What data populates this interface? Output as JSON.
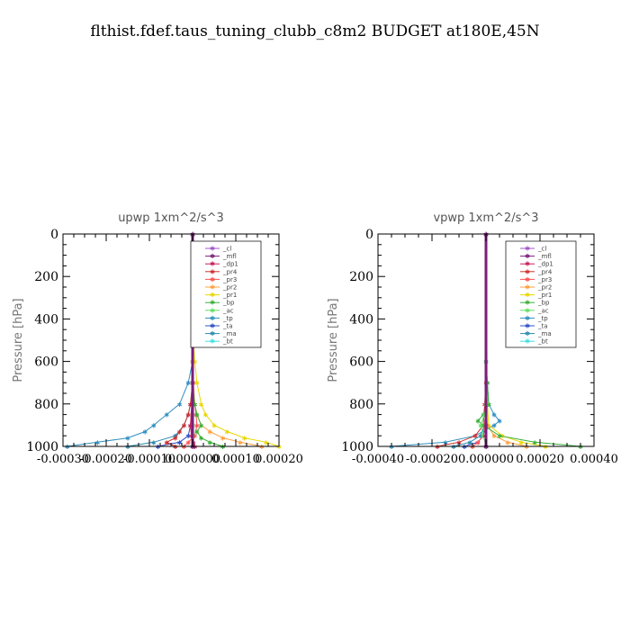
{
  "title": "flthist.fdef.taus_tuning_clubb_c8m2  BUDGET at180E,45N",
  "legend_entries": [
    "_cl",
    "_mfl",
    "_dp1",
    "_pr4",
    "_pr3",
    "_pr2",
    "_pr1",
    "_bp",
    "_ac",
    "_tp",
    "_ta",
    "_ma",
    "_bt"
  ],
  "series_colors": {
    "_cl": "#a259c9",
    "_mfl": "#7a1f7a",
    "_dp1": "#c81e5a",
    "_pr4": "#d03030",
    "_pr3": "#ff5050",
    "_pr2": "#ffa040",
    "_pr1": "#e8d800",
    "_bp": "#38b038",
    "_ac": "#60e060",
    "_tp": "#3090c0",
    "_ta": "#3050c8",
    "_ma": "#2a8ab0",
    "_bt": "#40e0e0"
  },
  "chart_data": [
    {
      "type": "line",
      "title": "upwp   1xm^2/s^3",
      "ylabel": "Pressure [hPa]",
      "ylim": [
        1000,
        0
      ],
      "xlim": [
        -0.0003,
        0.0002
      ],
      "xticks": [
        "-0.00030",
        "-0.00020",
        "-0.00010",
        "0.000000",
        "0.00010",
        "0.00020"
      ],
      "xtick_values": [
        -0.0003,
        -0.0002,
        -0.0001,
        0,
        0.0001,
        0.0002
      ],
      "yticks": [
        "0",
        "200",
        "400",
        "600",
        "800",
        "1000"
      ],
      "ytick_values": [
        0,
        200,
        400,
        600,
        800,
        1000
      ],
      "legend_position": "top-right",
      "series": [
        {
          "name": "_tp",
          "y": [
            0,
            500,
            600,
            700,
            800,
            850,
            900,
            930,
            960,
            980,
            1000
          ],
          "x": [
            0,
            0,
            0,
            -1e-05,
            -3e-05,
            -6e-05,
            -9e-05,
            -0.00011,
            -0.00015,
            -0.00022,
            -0.00029
          ]
        },
        {
          "name": "_ma",
          "y": [
            0,
            600,
            700,
            800,
            850,
            900,
            950,
            980,
            1000
          ],
          "x": [
            0,
            0,
            0,
            -5e-06,
            -1e-05,
            -2e-05,
            -4e-05,
            -9e-05,
            -0.00015
          ]
        },
        {
          "name": "_ta",
          "y": [
            0,
            800,
            900,
            950,
            980,
            1000
          ],
          "x": [
            0,
            0,
            -5e-06,
            -1e-05,
            -3e-05,
            -8e-05
          ]
        },
        {
          "name": "_pr4",
          "y": [
            0,
            600,
            700,
            800,
            850,
            900,
            930,
            960,
            980,
            1000
          ],
          "x": [
            0,
            0,
            0,
            -5e-06,
            -1e-05,
            -2e-05,
            -3e-05,
            -4e-05,
            -6e-05,
            -4e-05
          ]
        },
        {
          "name": "_pr3",
          "y": [
            0,
            700,
            800,
            850,
            900,
            950,
            980,
            1000
          ],
          "x": [
            0,
            0,
            5e-06,
            8e-06,
            1e-05,
            5e-06,
            -1e-05,
            -2e-05
          ]
        },
        {
          "name": "_pr1",
          "y": [
            0,
            500,
            600,
            700,
            800,
            850,
            900,
            930,
            960,
            980,
            1000
          ],
          "x": [
            0,
            2e-06,
            5e-06,
            1e-05,
            2e-05,
            3e-05,
            5e-05,
            8e-05,
            0.00012,
            0.00017,
            0.0002
          ]
        },
        {
          "name": "_pr2",
          "y": [
            0,
            600,
            700,
            800,
            850,
            900,
            930,
            960,
            980,
            1000
          ],
          "x": [
            0,
            0,
            2e-06,
            5e-06,
            1e-05,
            2e-05,
            4e-05,
            7e-05,
            0.00011,
            0.00016
          ]
        },
        {
          "name": "_bp",
          "y": [
            0,
            700,
            800,
            850,
            900,
            930,
            960,
            980,
            1000
          ],
          "x": [
            0,
            0,
            5e-06,
            1e-05,
            2e-05,
            1e-05,
            2e-05,
            4e-05,
            7e-05
          ]
        },
        {
          "name": "_ac",
          "y": [
            0,
            900,
            950,
            1000
          ],
          "x": [
            0,
            0,
            0,
            5e-06
          ]
        },
        {
          "name": "_bt",
          "y": [
            0,
            1000
          ],
          "x": [
            0,
            0
          ]
        },
        {
          "name": "_dp1",
          "y": [
            0,
            700,
            800,
            900,
            950,
            980,
            1000
          ],
          "x": [
            0,
            0,
            -2e-06,
            -5e-06,
            -3e-06,
            2e-06,
            5e-06
          ]
        },
        {
          "name": "_cl",
          "y": [
            0,
            1000
          ],
          "x": [
            0,
            0
          ]
        },
        {
          "name": "_mfl",
          "y": [
            0,
            1000
          ],
          "x": [
            0,
            0
          ]
        }
      ]
    },
    {
      "type": "line",
      "title": "vpwp   1xm^2/s^3",
      "ylabel": "Pressure [hPa]",
      "ylim": [
        1000,
        0
      ],
      "xlim": [
        -0.0004,
        0.0004
      ],
      "xticks": [
        "-0.00040",
        "-0.00020",
        "0.000000",
        "0.00020",
        "0.00040"
      ],
      "xtick_values": [
        -0.0004,
        -0.0002,
        0,
        0.0002,
        0.0004
      ],
      "yticks": [
        "0",
        "200",
        "400",
        "600",
        "800",
        "1000"
      ],
      "ytick_values": [
        0,
        200,
        400,
        600,
        800,
        1000
      ],
      "legend_position": "top-right",
      "series": [
        {
          "name": "_tp",
          "y": [
            0,
            600,
            700,
            800,
            850,
            880,
            900,
            950,
            980,
            1000
          ],
          "x": [
            0,
            0,
            5e-06,
            1e-05,
            3e-05,
            5e-05,
            3e-05,
            -4e-05,
            -0.00015,
            -0.00035
          ]
        },
        {
          "name": "_ma",
          "y": [
            0,
            800,
            900,
            950,
            980,
            1000
          ],
          "x": [
            0,
            0,
            -5e-06,
            -2e-05,
            -6e-05,
            -0.00012
          ]
        },
        {
          "name": "_ta",
          "y": [
            0,
            900,
            950,
            980,
            1000
          ],
          "x": [
            0,
            0,
            -1e-05,
            -3e-05,
            -8e-05
          ]
        },
        {
          "name": "_pr4",
          "y": [
            0,
            700,
            800,
            900,
            950,
            980,
            1000
          ],
          "x": [
            0,
            0,
            -5e-06,
            -1e-05,
            -4e-05,
            -0.0001,
            -0.00018
          ]
        },
        {
          "name": "_pr3",
          "y": [
            0,
            800,
            900,
            950,
            980,
            1000
          ],
          "x": [
            0,
            0,
            -5e-06,
            -1e-05,
            -3e-05,
            -5e-05
          ]
        },
        {
          "name": "_pr1",
          "y": [
            0,
            800,
            900,
            950,
            980,
            1000
          ],
          "x": [
            0,
            5e-06,
            1e-05,
            6e-05,
            0.00013,
            0.00022
          ]
        },
        {
          "name": "_pr2",
          "y": [
            0,
            800,
            900,
            950,
            980,
            1000
          ],
          "x": [
            0,
            0,
            5e-06,
            3e-05,
            8e-05,
            0.00015
          ]
        },
        {
          "name": "_bp",
          "y": [
            0,
            600,
            700,
            800,
            850,
            880,
            900,
            950,
            980,
            1000
          ],
          "x": [
            0,
            0,
            5e-06,
            1e-05,
            -1e-05,
            -3e-05,
            -1e-05,
            5e-05,
            0.00018,
            0.00035
          ]
        },
        {
          "name": "_ac",
          "y": [
            0,
            800,
            850,
            900,
            950,
            1000
          ],
          "x": [
            0,
            0,
            -5e-06,
            -2e-05,
            -1e-05,
            0
          ]
        },
        {
          "name": "_bt",
          "y": [
            0,
            1000
          ],
          "x": [
            0,
            0
          ]
        },
        {
          "name": "_dp1",
          "y": [
            0,
            900,
            950,
            1000
          ],
          "x": [
            0,
            0,
            -3e-06,
            0
          ]
        },
        {
          "name": "_cl",
          "y": [
            0,
            1000
          ],
          "x": [
            0,
            0
          ]
        },
        {
          "name": "_mfl",
          "y": [
            0,
            1000
          ],
          "x": [
            0,
            0
          ]
        }
      ]
    }
  ]
}
